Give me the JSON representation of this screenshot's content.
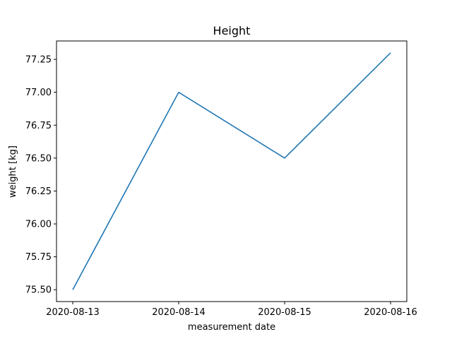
{
  "chart_data": {
    "type": "line",
    "title": "Height",
    "xlabel": "measurement date",
    "ylabel": "weight [kg]",
    "x": [
      "2020-08-13",
      "2020-08-14",
      "2020-08-15",
      "2020-08-16"
    ],
    "series": [
      {
        "values": [
          75.5,
          77.0,
          76.5,
          77.3
        ],
        "color": "#1f77b4"
      }
    ],
    "xticks": [
      "2020-08-13",
      "2020-08-14",
      "2020-08-15",
      "2020-08-16"
    ],
    "yticks": [
      "75.50",
      "75.75",
      "76.00",
      "76.25",
      "76.50",
      "76.75",
      "77.00",
      "77.25"
    ],
    "ylim": [
      75.41,
      77.39
    ],
    "grid": false
  }
}
